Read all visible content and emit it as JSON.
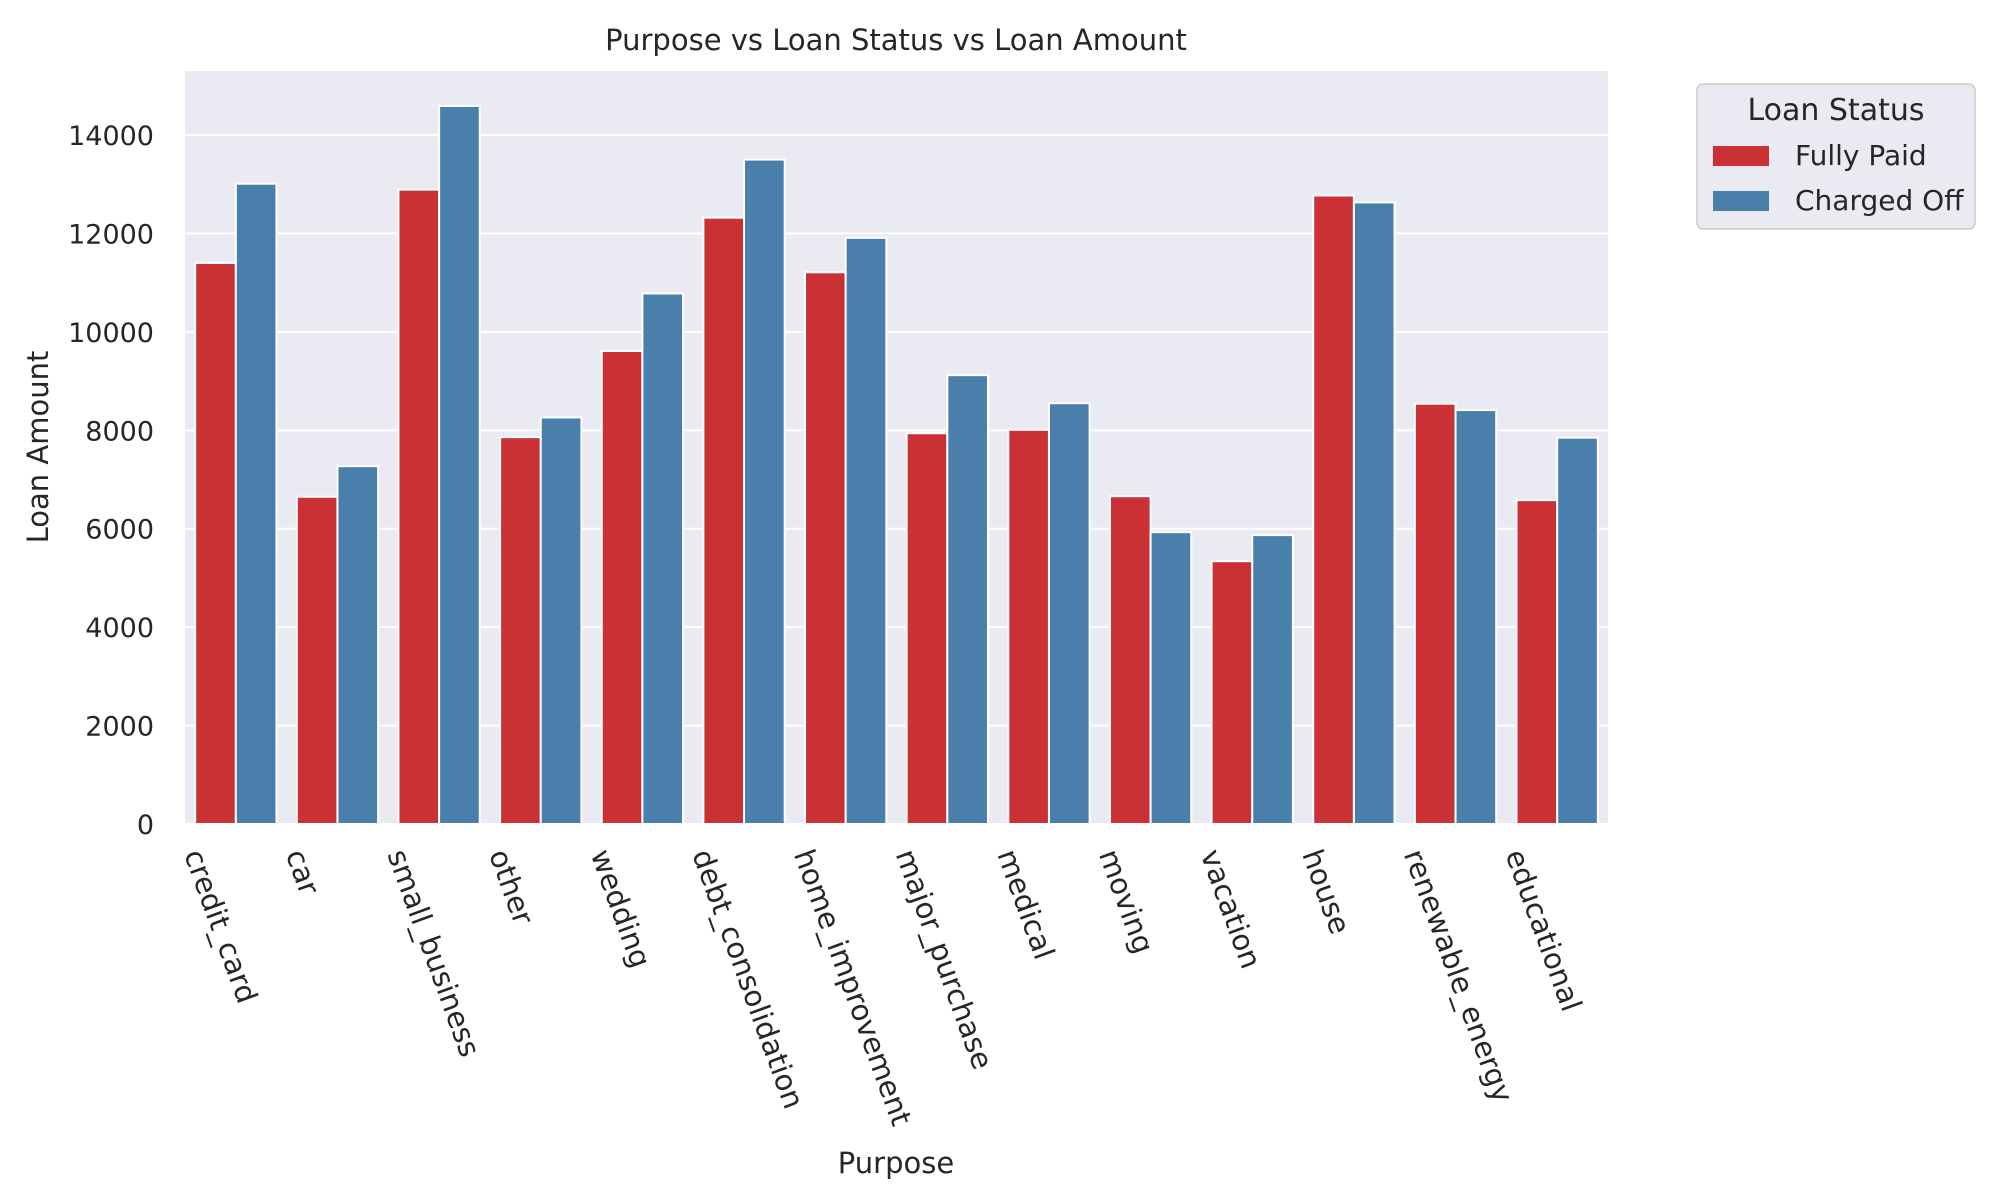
{
  "chart_data": {
    "type": "bar",
    "title": "Purpose vs Loan Status vs Loan Amount",
    "xlabel": "Purpose",
    "ylabel": "Loan Amount",
    "ylim": [
      0,
      15300
    ],
    "yticks": [
      0,
      2000,
      4000,
      6000,
      8000,
      10000,
      12000,
      14000
    ],
    "grid": true,
    "legend": {
      "title": "Loan Status",
      "placement": "outside-top-right"
    },
    "categories": [
      "credit_card",
      "car",
      "small_business",
      "other",
      "wedding",
      "debt_consolidation",
      "home_improvement",
      "major_purchase",
      "medical",
      "moving",
      "vacation",
      "house",
      "renewable_energy",
      "educational"
    ],
    "series": [
      {
        "name": "Fully Paid",
        "color": "#c93134",
        "values": [
          11400,
          6650,
          12890,
          7860,
          9610,
          12320,
          11210,
          7940,
          8010,
          6660,
          5340,
          12770,
          8540,
          6580
        ]
      },
      {
        "name": "Charged Off",
        "color": "#4a7fac",
        "values": [
          13010,
          7270,
          14590,
          8260,
          10780,
          13500,
          11910,
          9120,
          8550,
          5930,
          5870,
          12630,
          8410,
          7850
        ]
      }
    ],
    "colors": {
      "plot_background": "#eaeaf2",
      "grid": "#ffffff",
      "bar_edge": "#ffffff"
    }
  }
}
